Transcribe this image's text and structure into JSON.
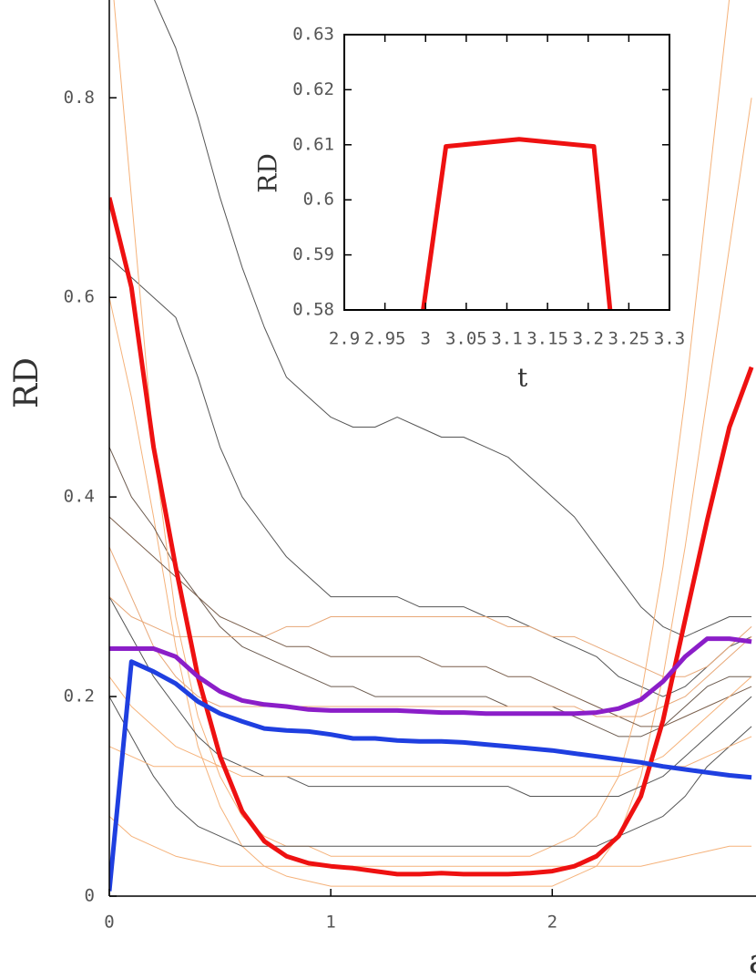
{
  "chart_data": [
    {
      "type": "line",
      "ylabel": "RD",
      "xlabel": "a",
      "xlim": [
        0,
        2.92
      ],
      "ylim": [
        0,
        0.898
      ],
      "xticks": [
        0,
        1,
        2
      ],
      "yticks": [
        0,
        0.2,
        0.4,
        0.6,
        0.8
      ],
      "x": [
        0,
        0.1,
        0.2,
        0.3,
        0.4,
        0.5,
        0.6,
        0.7,
        0.8,
        0.9,
        1.0,
        1.1,
        1.2,
        1.3,
        1.4,
        1.5,
        1.6,
        1.7,
        1.8,
        1.9,
        2.0,
        2.1,
        2.2,
        2.3,
        2.4,
        2.5,
        2.6,
        2.7,
        2.8,
        2.9
      ],
      "background_series": [
        {
          "color": "#555555",
          "values": [
            1.0,
            0.95,
            0.9,
            0.85,
            0.78,
            0.7,
            0.63,
            0.57,
            0.52,
            0.5,
            0.48,
            0.47,
            0.47,
            0.48,
            0.47,
            0.46,
            0.46,
            0.45,
            0.44,
            0.42,
            0.4,
            0.38,
            0.35,
            0.32,
            0.29,
            0.27,
            0.26,
            0.27,
            0.28,
            0.28
          ]
        },
        {
          "color": "#555555",
          "values": [
            0.64,
            0.62,
            0.6,
            0.58,
            0.52,
            0.45,
            0.4,
            0.37,
            0.34,
            0.32,
            0.3,
            0.3,
            0.3,
            0.3,
            0.29,
            0.29,
            0.29,
            0.28,
            0.28,
            0.27,
            0.26,
            0.25,
            0.24,
            0.22,
            0.21,
            0.2,
            0.21,
            0.23,
            0.25,
            0.26
          ]
        },
        {
          "color": "#f5b27a",
          "values": [
            0.6,
            0.5,
            0.38,
            0.25,
            0.15,
            0.09,
            0.05,
            0.03,
            0.02,
            0.015,
            0.01,
            0.01,
            0.01,
            0.01,
            0.01,
            0.01,
            0.01,
            0.01,
            0.01,
            0.01,
            0.01,
            0.02,
            0.03,
            0.06,
            0.12,
            0.22,
            0.35,
            0.5,
            0.65,
            0.8
          ]
        },
        {
          "color": "#6b5a4e",
          "values": [
            0.45,
            0.4,
            0.37,
            0.33,
            0.3,
            0.27,
            0.25,
            0.24,
            0.23,
            0.22,
            0.21,
            0.21,
            0.2,
            0.2,
            0.2,
            0.2,
            0.2,
            0.2,
            0.19,
            0.19,
            0.19,
            0.18,
            0.17,
            0.16,
            0.16,
            0.17,
            0.19,
            0.21,
            0.22,
            0.22
          ]
        },
        {
          "color": "#f5b27a",
          "values": [
            0.95,
            0.7,
            0.45,
            0.28,
            0.18,
            0.12,
            0.08,
            0.06,
            0.05,
            0.05,
            0.04,
            0.04,
            0.04,
            0.04,
            0.04,
            0.04,
            0.04,
            0.04,
            0.04,
            0.04,
            0.05,
            0.06,
            0.08,
            0.12,
            0.2,
            0.33,
            0.5,
            0.7,
            0.9,
            1.0
          ]
        },
        {
          "color": "#555555",
          "values": [
            0.3,
            0.26,
            0.22,
            0.19,
            0.16,
            0.14,
            0.13,
            0.12,
            0.12,
            0.11,
            0.11,
            0.11,
            0.11,
            0.11,
            0.11,
            0.11,
            0.11,
            0.11,
            0.11,
            0.1,
            0.1,
            0.1,
            0.1,
            0.1,
            0.11,
            0.12,
            0.14,
            0.16,
            0.18,
            0.2
          ]
        },
        {
          "color": "#e8a878",
          "values": [
            0.3,
            0.28,
            0.27,
            0.26,
            0.26,
            0.26,
            0.26,
            0.26,
            0.27,
            0.27,
            0.28,
            0.28,
            0.28,
            0.28,
            0.28,
            0.28,
            0.28,
            0.28,
            0.27,
            0.27,
            0.26,
            0.26,
            0.25,
            0.24,
            0.23,
            0.22,
            0.22,
            0.23,
            0.25,
            0.27
          ]
        },
        {
          "color": "#555555",
          "values": [
            0.2,
            0.16,
            0.12,
            0.09,
            0.07,
            0.06,
            0.05,
            0.05,
            0.05,
            0.05,
            0.05,
            0.05,
            0.05,
            0.05,
            0.05,
            0.05,
            0.05,
            0.05,
            0.05,
            0.05,
            0.05,
            0.05,
            0.05,
            0.06,
            0.07,
            0.08,
            0.1,
            0.13,
            0.15,
            0.17
          ]
        },
        {
          "color": "#f5b27a",
          "values": [
            0.15,
            0.14,
            0.13,
            0.13,
            0.13,
            0.13,
            0.13,
            0.13,
            0.13,
            0.13,
            0.13,
            0.13,
            0.13,
            0.13,
            0.13,
            0.13,
            0.13,
            0.13,
            0.13,
            0.13,
            0.13,
            0.13,
            0.13,
            0.13,
            0.13,
            0.13,
            0.13,
            0.14,
            0.15,
            0.16
          ]
        },
        {
          "color": "#7a5f4c",
          "values": [
            0.38,
            0.36,
            0.34,
            0.32,
            0.3,
            0.28,
            0.27,
            0.26,
            0.25,
            0.25,
            0.24,
            0.24,
            0.24,
            0.24,
            0.24,
            0.23,
            0.23,
            0.23,
            0.22,
            0.22,
            0.21,
            0.2,
            0.19,
            0.18,
            0.17,
            0.17,
            0.18,
            0.19,
            0.2,
            0.21
          ]
        },
        {
          "color": "#f5b27a",
          "values": [
            0.22,
            0.19,
            0.17,
            0.15,
            0.14,
            0.13,
            0.12,
            0.12,
            0.12,
            0.12,
            0.12,
            0.12,
            0.12,
            0.12,
            0.12,
            0.12,
            0.12,
            0.12,
            0.12,
            0.12,
            0.12,
            0.12,
            0.12,
            0.12,
            0.13,
            0.14,
            0.16,
            0.18,
            0.2,
            0.22
          ]
        },
        {
          "color": "#f5b27a",
          "values": [
            0.08,
            0.06,
            0.05,
            0.04,
            0.035,
            0.03,
            0.03,
            0.03,
            0.03,
            0.03,
            0.03,
            0.03,
            0.03,
            0.03,
            0.03,
            0.03,
            0.03,
            0.03,
            0.03,
            0.03,
            0.03,
            0.03,
            0.03,
            0.03,
            0.03,
            0.035,
            0.04,
            0.045,
            0.05,
            0.05
          ]
        },
        {
          "color": "#e8a878",
          "values": [
            0.35,
            0.3,
            0.25,
            0.22,
            0.2,
            0.19,
            0.19,
            0.19,
            0.19,
            0.19,
            0.19,
            0.19,
            0.19,
            0.19,
            0.19,
            0.19,
            0.19,
            0.19,
            0.19,
            0.19,
            0.19,
            0.19,
            0.18,
            0.18,
            0.18,
            0.19,
            0.2,
            0.22,
            0.24,
            0.26
          ]
        }
      ],
      "series": [
        {
          "color": "#ee1111",
          "values": [
            0.7,
            0.61,
            0.45,
            0.33,
            0.22,
            0.14,
            0.085,
            0.055,
            0.04,
            0.033,
            0.03,
            0.028,
            0.025,
            0.022,
            0.022,
            0.023,
            0.022,
            0.022,
            0.022,
            0.023,
            0.025,
            0.03,
            0.04,
            0.06,
            0.1,
            0.176,
            0.277,
            0.377,
            0.47,
            0.53
          ]
        },
        {
          "color": "#8b1ec8",
          "values": [
            0.248,
            0.248,
            0.248,
            0.24,
            0.22,
            0.205,
            0.196,
            0.192,
            0.19,
            0.187,
            0.186,
            0.186,
            0.186,
            0.186,
            0.185,
            0.184,
            0.184,
            0.183,
            0.183,
            0.183,
            0.183,
            0.183,
            0.184,
            0.188,
            0.197,
            0.215,
            0.24,
            0.258,
            0.258,
            0.255
          ]
        },
        {
          "color": "#1f3fe0",
          "values": [
            0.005,
            0.235,
            0.225,
            0.213,
            0.195,
            0.183,
            0.175,
            0.168,
            0.166,
            0.165,
            0.162,
            0.158,
            0.158,
            0.156,
            0.155,
            0.155,
            0.154,
            0.152,
            0.15,
            0.148,
            0.146,
            0.143,
            0.14,
            0.137,
            0.134,
            0.13,
            0.127,
            0.124,
            0.121,
            0.119
          ]
        }
      ]
    },
    {
      "type": "line",
      "ylabel": "RD",
      "xlabel": "t",
      "xlim": [
        2.9,
        3.3
      ],
      "ylim": [
        0.58,
        0.63
      ],
      "xticks": [
        2.9,
        2.95,
        3,
        3.05,
        3.1,
        3.15,
        3.2,
        3.25,
        3.3
      ],
      "yticks": [
        0.58,
        0.59,
        0.6,
        0.61,
        0.62,
        0.63
      ],
      "x": [
        2.997,
        3.025,
        3.115,
        3.207,
        3.227
      ],
      "series": [
        {
          "color": "#ee1111",
          "values": [
            0.58,
            0.6097,
            0.611,
            0.6097,
            0.58
          ]
        }
      ]
    }
  ]
}
